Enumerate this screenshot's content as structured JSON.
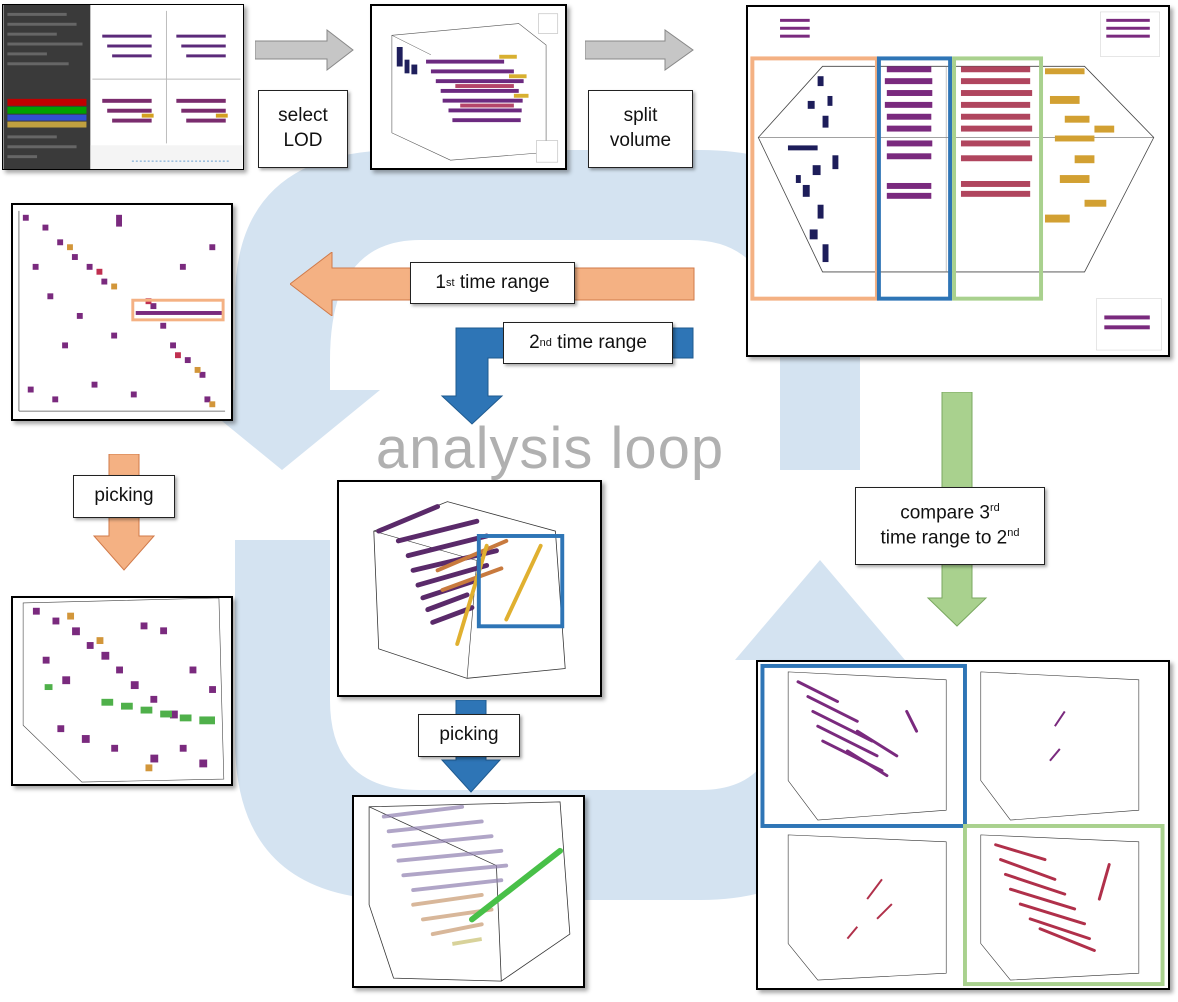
{
  "loop_title": "analysis loop",
  "labels": {
    "select_lod": "select LOD",
    "split_volume": "split volume",
    "time_range_1_num": "1",
    "time_range_1_sup": "st",
    "time_range_1_text": " time range",
    "time_range_2_num": "2",
    "time_range_2_sup": "nd",
    "time_range_2_text": " time range",
    "picking_left": "picking",
    "picking_center": "picking",
    "compare_line1a": "compare 3",
    "compare_line1_sup": "rd",
    "compare_line2a": "time range to 2",
    "compare_line2_sup": "nd"
  },
  "colors": {
    "loop_blue": "#d4e3f1",
    "arrow_gray": "#c6c6c6",
    "arrow_orange": "#f4b183",
    "arrow_blue": "#2e75b6",
    "arrow_green": "#a9d18e",
    "highlight_orange": "#f4b183",
    "highlight_blue": "#2e75b6",
    "highlight_green": "#a9d18e"
  }
}
